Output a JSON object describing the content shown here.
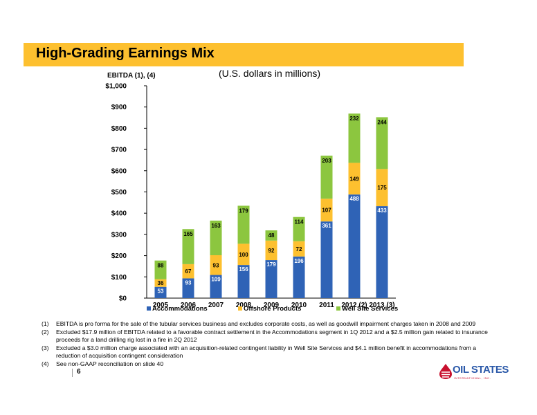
{
  "header": {
    "title": "High-Grading Earnings Mix"
  },
  "chart_data": {
    "type": "bar",
    "stacked": true,
    "title": "(U.S. dollars in millions)",
    "ylabel": "EBITDA (1), (4)",
    "xlabel": "",
    "categories": [
      "2005",
      "2006",
      "2007",
      "2008",
      "2009",
      "2010",
      "2011",
      "2012 (2)",
      "2013 (3)"
    ],
    "ylim": [
      0,
      1000
    ],
    "yticks": [
      0,
      100,
      200,
      300,
      400,
      500,
      600,
      700,
      800,
      900,
      1000
    ],
    "ytick_labels": [
      "$0",
      "$100",
      "$200",
      "$300",
      "$400",
      "$500",
      "$600",
      "$700",
      "$800",
      "$900",
      "$1,000"
    ],
    "grid": false,
    "legend": "bottom",
    "series": [
      {
        "name": "Accommodations",
        "color": "#2F63B6",
        "values": [
          53,
          93,
          109,
          156,
          179,
          196,
          361,
          488,
          433
        ]
      },
      {
        "name": "Offshore Products",
        "color": "#FDC02F",
        "values": [
          36,
          67,
          93,
          100,
          92,
          72,
          107,
          149,
          175
        ]
      },
      {
        "name": "Well Site Services",
        "color": "#8CC63F",
        "values": [
          88,
          165,
          163,
          179,
          48,
          114,
          203,
          232,
          244
        ]
      }
    ]
  },
  "notes": [
    {
      "num": "(1)",
      "text": "EBITDA is pro forma for the sale of the tubular services business and excludes corporate costs, as well as goodwill impairment charges taken in 2008 and 2009"
    },
    {
      "num": "(2)",
      "text": "Excluded $17.9 million of EBITDA related to a favorable contract settlement in the Accommodations segment in 1Q 2012 and a $2.5 million gain related to insurance proceeds for a land drilling rig lost in a fire in 2Q 2012"
    },
    {
      "num": "(3)",
      "text": "Excluded a $3.0 million charge associated with an acquisition-related contingent liability in Well Site Services and $4.1 million benefit in accommodations from a reduction of acquisition contingent consideration"
    },
    {
      "num": "(4)",
      "text": "See non-GAAP reconciliation on slide 40"
    }
  ],
  "footer": {
    "page_number": "6",
    "logo_text": "OIL STATES",
    "logo_subtext": "INTERNATIONAL, INC.",
    "logo_color": "#2A58A8",
    "logo_accent": "#C8102E"
  }
}
